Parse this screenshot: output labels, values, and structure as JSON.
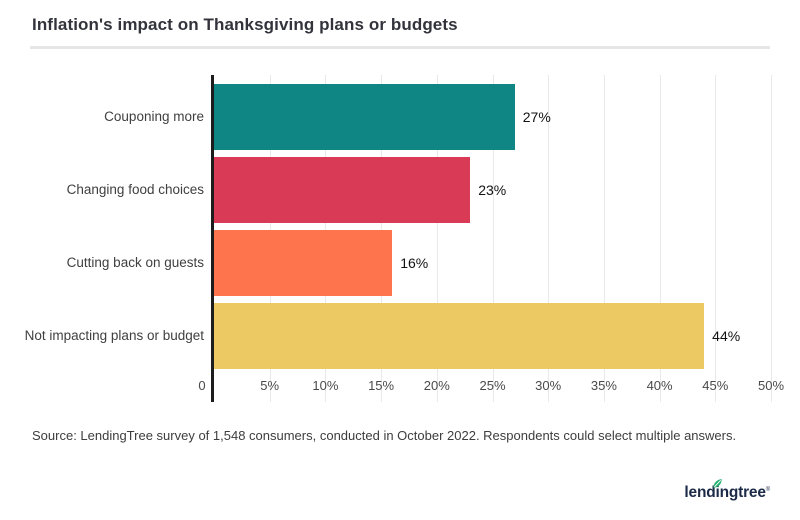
{
  "header": {
    "title": "Inflation's impact on Thanksgiving plans or budgets"
  },
  "chart_data": {
    "type": "bar",
    "orientation": "horizontal",
    "title": "Inflation's impact on Thanksgiving plans or budgets",
    "categories": [
      "Couponing more",
      "Changing food choices",
      "Cutting back on guests",
      "Not impacting plans or budget"
    ],
    "values": [
      27,
      23,
      16,
      44
    ],
    "value_labels": [
      "27%",
      "23%",
      "16%",
      "44%"
    ],
    "bar_colors": [
      "#0f8584",
      "#d93a55",
      "#fd744d",
      "#edc963"
    ],
    "xlabel": "",
    "ylabel": "",
    "xlim": [
      0,
      50
    ],
    "x_ticks": [
      0,
      5,
      10,
      15,
      20,
      25,
      30,
      35,
      40,
      45,
      50
    ],
    "x_tick_labels": [
      "0",
      "5%",
      "10%",
      "15%",
      "20%",
      "25%",
      "30%",
      "35%",
      "40%",
      "45%",
      "50%"
    ],
    "grid": "vertical",
    "gridline_color": "#e9e9e9",
    "axis_color": "#1c1c1c",
    "legend": false
  },
  "footer": {
    "source": "Source: LendingTree survey of 1,548 consumers, conducted in October 2022. Respondents could select multiple answers.",
    "logo": {
      "label": "lendingtree",
      "reg": "®",
      "leaf_color": "#27b376",
      "text_color": "#1b2a47"
    }
  }
}
